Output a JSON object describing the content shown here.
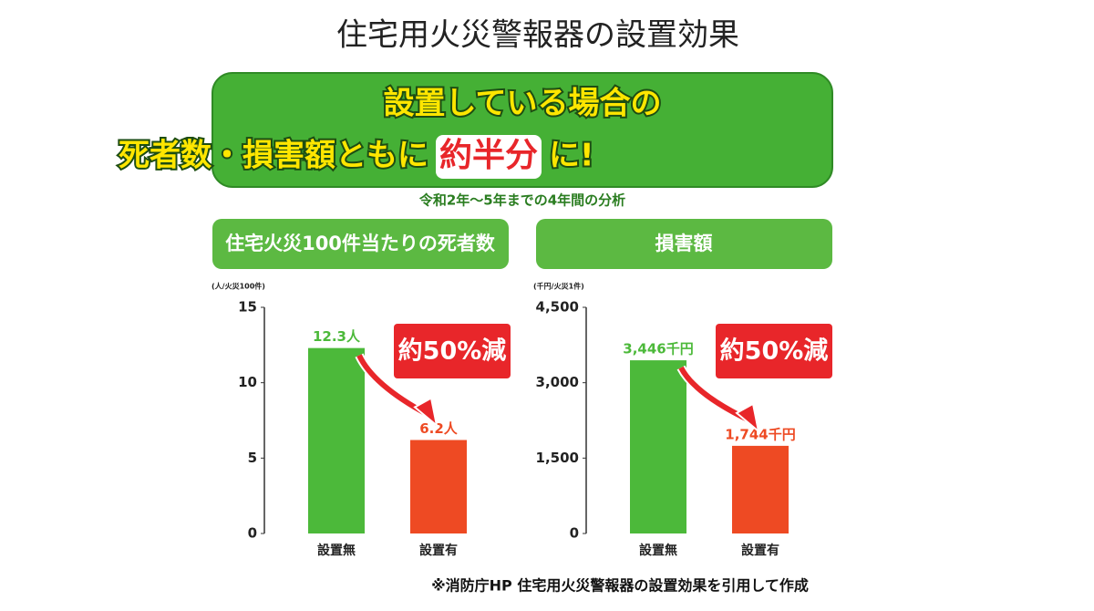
{
  "title": "住宅用火災警報器の設置効果",
  "banner": {
    "line1": "設置している場合の",
    "line2_pre": "死者数・損害額ともに",
    "highlight": "約半分",
    "line2_post": "に!"
  },
  "subtitle": "令和2年～5年までの4年間の分析",
  "footnote": "※消防庁HP 住宅用火災警報器の設置効果を引用して作成",
  "chart_data": [
    {
      "type": "bar",
      "title": "住宅火災100件当たりの死者数",
      "unit": "(人/火災100件)",
      "categories": [
        "設置無",
        "設置有"
      ],
      "values": [
        12.3,
        6.2
      ],
      "value_labels": [
        "12.3人",
        "6.2人"
      ],
      "colors": [
        "#4cb93a",
        "#ee4a23"
      ],
      "ylim": [
        0,
        15
      ],
      "yticks": [
        0,
        5,
        10,
        15
      ],
      "annotation": "約50%減"
    },
    {
      "type": "bar",
      "title": "損害額",
      "unit": "(千円/火災1件)",
      "categories": [
        "設置無",
        "設置有"
      ],
      "values": [
        3446,
        1744
      ],
      "value_labels": [
        "3,446千円",
        "1,744千円"
      ],
      "colors": [
        "#4cb93a",
        "#ee4a23"
      ],
      "ylim": [
        0,
        4500
      ],
      "yticks": [
        0,
        {
          "value": 1500,
          "label": "1,500"
        },
        {
          "value": 3000,
          "label": "3,000"
        },
        {
          "value": 4500,
          "label": "4,500"
        }
      ],
      "annotation": "約50%減"
    }
  ]
}
